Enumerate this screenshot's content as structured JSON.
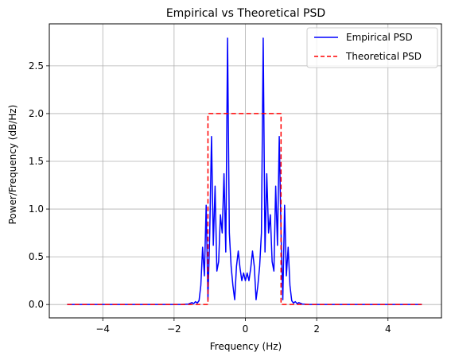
{
  "chart_data": {
    "type": "line",
    "title": "Empirical vs Theoretical PSD",
    "xlabel": "Frequency (Hz)",
    "ylabel": "Power/Frequency (dB/Hz)",
    "xlim": [
      -5.5,
      5.5
    ],
    "ylim": [
      -0.14,
      2.94
    ],
    "xticks": [
      -4,
      -2,
      0,
      2,
      4
    ],
    "xtick_labels": [
      "−4",
      "−2",
      "0",
      "2",
      "4"
    ],
    "yticks": [
      0.0,
      0.5,
      1.0,
      1.5,
      2.0,
      2.5
    ],
    "ytick_labels": [
      "0.0",
      "0.5",
      "1.0",
      "1.5",
      "2.0",
      "2.5"
    ],
    "grid": true,
    "legend_position": "top-right",
    "series": [
      {
        "name": "Empirical PSD",
        "color": "#0000ff",
        "style": "solid",
        "points": [
          [
            -5.0,
            0.0
          ],
          [
            -1.8,
            0.0
          ],
          [
            -1.6,
            0.005
          ],
          [
            -1.5,
            0.02
          ],
          [
            -1.45,
            0.01
          ],
          [
            -1.4,
            0.03
          ],
          [
            -1.35,
            0.015
          ],
          [
            -1.3,
            0.04
          ],
          [
            -1.25,
            0.2
          ],
          [
            -1.2,
            0.6
          ],
          [
            -1.15,
            0.3
          ],
          [
            -1.1,
            1.04
          ],
          [
            -1.05,
            0.05
          ],
          [
            -1.0,
            0.75
          ],
          [
            -0.95,
            1.76
          ],
          [
            -0.9,
            0.62
          ],
          [
            -0.85,
            1.24
          ],
          [
            -0.8,
            0.35
          ],
          [
            -0.75,
            0.45
          ],
          [
            -0.7,
            0.94
          ],
          [
            -0.65,
            0.75
          ],
          [
            -0.6,
            1.37
          ],
          [
            -0.55,
            0.55
          ],
          [
            -0.5,
            2.79
          ],
          [
            -0.45,
            0.75
          ],
          [
            -0.4,
            0.4
          ],
          [
            -0.35,
            0.2
          ],
          [
            -0.3,
            0.05
          ],
          [
            -0.25,
            0.4
          ],
          [
            -0.2,
            0.56
          ],
          [
            -0.15,
            0.38
          ],
          [
            -0.1,
            0.25
          ],
          [
            -0.05,
            0.33
          ],
          [
            0.0,
            0.25
          ],
          [
            0.05,
            0.33
          ],
          [
            0.1,
            0.25
          ],
          [
            0.15,
            0.38
          ],
          [
            0.2,
            0.56
          ],
          [
            0.25,
            0.4
          ],
          [
            0.3,
            0.05
          ],
          [
            0.35,
            0.2
          ],
          [
            0.4,
            0.4
          ],
          [
            0.45,
            0.75
          ],
          [
            0.5,
            2.79
          ],
          [
            0.55,
            0.55
          ],
          [
            0.6,
            1.37
          ],
          [
            0.65,
            0.75
          ],
          [
            0.7,
            0.94
          ],
          [
            0.75,
            0.45
          ],
          [
            0.8,
            0.35
          ],
          [
            0.85,
            1.24
          ],
          [
            0.9,
            0.62
          ],
          [
            0.95,
            1.76
          ],
          [
            1.0,
            0.75
          ],
          [
            1.05,
            0.05
          ],
          [
            1.1,
            1.04
          ],
          [
            1.15,
            0.3
          ],
          [
            1.2,
            0.6
          ],
          [
            1.25,
            0.2
          ],
          [
            1.3,
            0.04
          ],
          [
            1.35,
            0.015
          ],
          [
            1.4,
            0.03
          ],
          [
            1.45,
            0.01
          ],
          [
            1.5,
            0.02
          ],
          [
            1.6,
            0.005
          ],
          [
            1.8,
            0.0
          ],
          [
            4.95,
            0.0
          ]
        ]
      },
      {
        "name": "Theoretical PSD",
        "color": "#ff0000",
        "style": "dashed",
        "points": [
          [
            -5.0,
            0.0
          ],
          [
            -1.05,
            0.0
          ],
          [
            -1.05,
            2.0
          ],
          [
            1.0,
            2.0
          ],
          [
            1.0,
            0.0
          ],
          [
            4.95,
            0.0
          ]
        ]
      }
    ]
  }
}
